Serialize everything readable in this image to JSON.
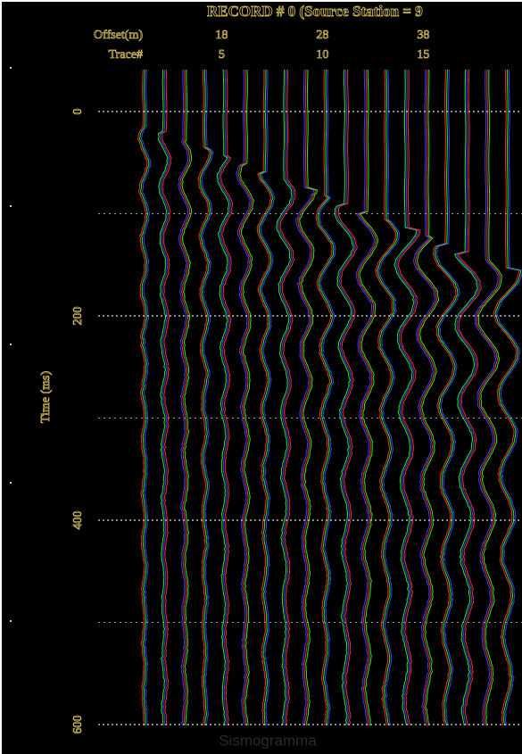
{
  "header": {
    "title": "RECORD # 0 (Source Station = 9",
    "offset_label": "Offset(m)",
    "offsets": [
      "18",
      "28",
      "38"
    ],
    "trace_label": "Trace#",
    "traces": [
      "5",
      "10",
      "15"
    ]
  },
  "axis": {
    "label": "Time (ms)",
    "ticks": [
      0,
      200,
      400,
      600
    ]
  },
  "footer": "Sismogramma"
}
